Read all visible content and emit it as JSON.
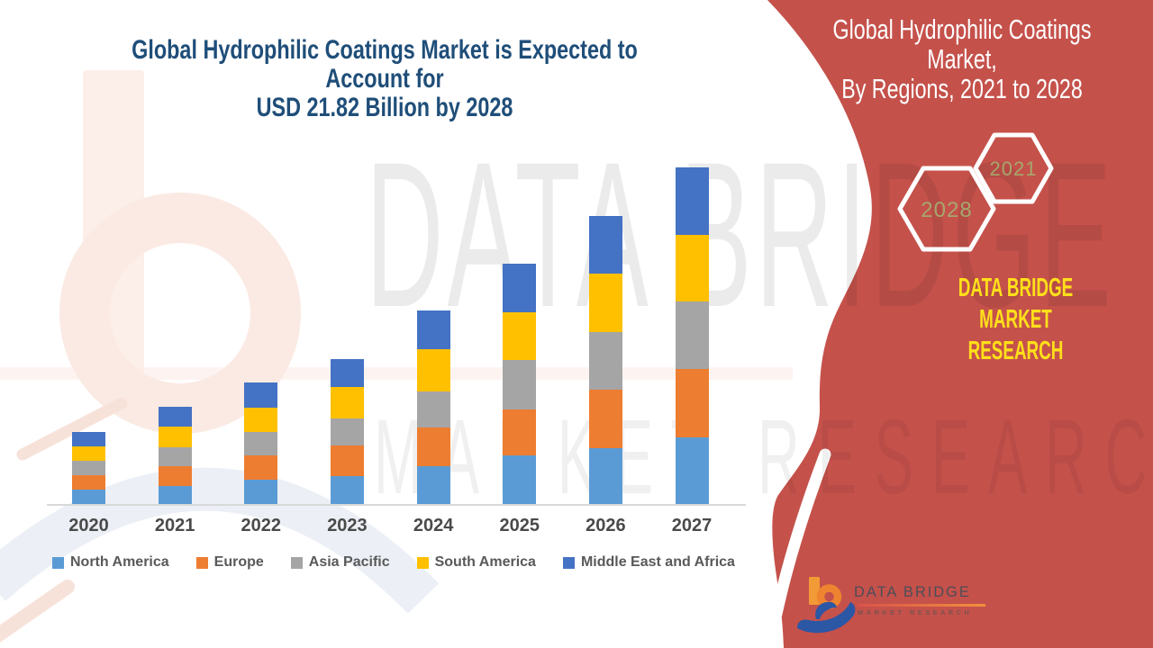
{
  "panel": {
    "title_line1": "Global Hydrophilic Coatings Market,",
    "title_line2": "By Regions, 2021 to 2028",
    "badge_back_year": "2028",
    "badge_front_year": "2021",
    "brand_line1": "DATA BRIDGE MARKET",
    "brand_line2": "RESEARCH"
  },
  "logo": {
    "title": "DATA BRIDGE",
    "subtitle": "MARKET RESEARCH"
  },
  "watermark": {
    "line1": "DATA BRIDGE",
    "line2": "MARKET RESEARCH"
  },
  "chart": {
    "title_line1": "Global Hydrophilic Coatings Market is Expected to Account for",
    "title_line2": "USD 21.82 Billion by 2028"
  },
  "colors": {
    "panel_red": "#C5514B",
    "title_navy": "#1F4E79",
    "brand_yellow": "#FFE01A",
    "badge_year_olive": "#A6A76C",
    "axis_gray": "#D9D9D9"
  },
  "chart_data": {
    "type": "bar",
    "stacked": true,
    "title": "Global Hydrophilic Coatings Market is Expected to Account for USD 21.82 Billion by 2028",
    "categories": [
      "2020",
      "2021",
      "2022",
      "2023",
      "2024",
      "2025",
      "2026",
      "2027"
    ],
    "series": [
      {
        "name": "North America",
        "color": "#5B9BD5",
        "values": [
          16,
          20,
          27,
          31,
          42,
          54,
          62,
          74
        ]
      },
      {
        "name": "Europe",
        "color": "#ED7D31",
        "values": [
          16,
          22,
          27,
          34,
          43,
          51,
          65,
          76
        ]
      },
      {
        "name": "Asia Pacific",
        "color": "#A5A5A5",
        "values": [
          16,
          21,
          26,
          30,
          40,
          55,
          64,
          75
        ]
      },
      {
        "name": "South America",
        "color": "#FFC000",
        "values": [
          16,
          23,
          27,
          35,
          47,
          53,
          65,
          74
        ]
      },
      {
        "name": "Middle East and Africa",
        "color": "#4472C4",
        "values": [
          16,
          22,
          28,
          31,
          43,
          54,
          64,
          75
        ]
      }
    ],
    "xlabel": "",
    "ylabel": "",
    "y_axis_visible": false,
    "units": "relative height (no value axis shown)",
    "legend_position": "bottom",
    "grid": false
  }
}
